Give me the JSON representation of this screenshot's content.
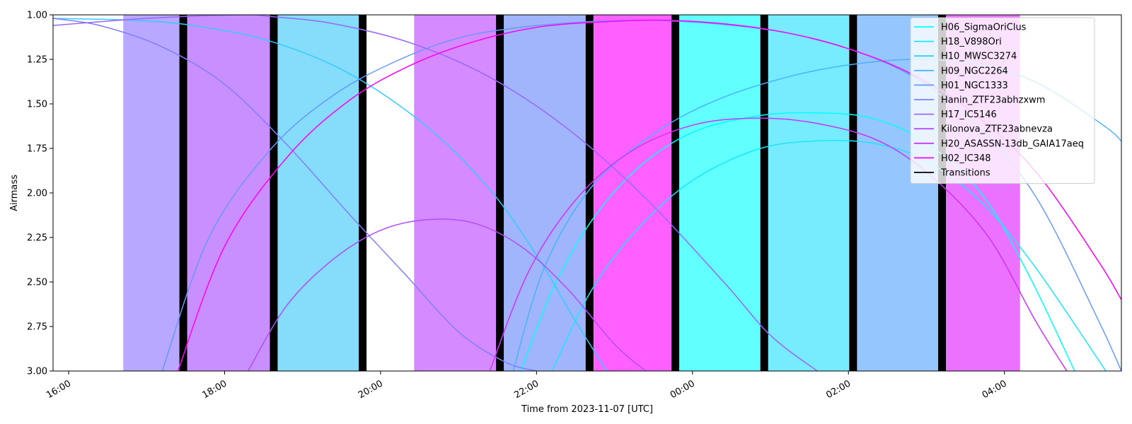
{
  "chart_data": {
    "type": "line",
    "title": "",
    "xlabel": "Time from 2023-11-07 [UTC]",
    "ylabel": "Airmass",
    "x_unit": "hours (UTC), 16.0 = 2023-11-07 16:00, 24+ = next day",
    "xlim": [
      15.8,
      29.5
    ],
    "ylim": [
      3.0,
      1.0
    ],
    "y_inverted": true,
    "grid": false,
    "legend_position": "top-right",
    "x_ticks": [
      {
        "value": 16,
        "label": "16:00"
      },
      {
        "value": 18,
        "label": "18:00"
      },
      {
        "value": 20,
        "label": "20:00"
      },
      {
        "value": 22,
        "label": "22:00"
      },
      {
        "value": 24,
        "label": "00:00"
      },
      {
        "value": 26,
        "label": "02:00"
      },
      {
        "value": 28,
        "label": "04:00"
      }
    ],
    "y_ticks": [
      {
        "value": 1.0,
        "label": "1.00"
      },
      {
        "value": 1.25,
        "label": "1.25"
      },
      {
        "value": 1.5,
        "label": "1.50"
      },
      {
        "value": 1.75,
        "label": "1.75"
      },
      {
        "value": 2.0,
        "label": "2.00"
      },
      {
        "value": 2.25,
        "label": "2.25"
      },
      {
        "value": 2.5,
        "label": "2.50"
      },
      {
        "value": 2.75,
        "label": "2.75"
      },
      {
        "value": 3.0,
        "label": "3.00"
      }
    ],
    "observation_blocks": [
      {
        "start": 16.7,
        "end": 17.42,
        "color": "#b9a8ff"
      },
      {
        "start": 17.52,
        "end": 18.58,
        "color": "#c98fff"
      },
      {
        "start": 18.68,
        "end": 19.72,
        "color": "#85dcfb"
      },
      {
        "start": 20.43,
        "end": 21.48,
        "color": "#d68aff"
      },
      {
        "start": 21.58,
        "end": 22.63,
        "color": "#a1b5fc"
      },
      {
        "start": 22.73,
        "end": 23.73,
        "color": "#ff60ff"
      },
      {
        "start": 23.83,
        "end": 24.87,
        "color": "#62ffff"
      },
      {
        "start": 24.97,
        "end": 26.01,
        "color": "#77ebff"
      },
      {
        "start": 26.11,
        "end": 27.15,
        "color": "#95c6fd"
      },
      {
        "start": 27.25,
        "end": 28.2,
        "color": "#ea72ff"
      }
    ],
    "transitions": [
      {
        "start": 17.42,
        "end": 17.52
      },
      {
        "start": 18.58,
        "end": 18.68
      },
      {
        "start": 19.72,
        "end": 19.82
      },
      {
        "start": 21.48,
        "end": 21.58
      },
      {
        "start": 22.63,
        "end": 22.73
      },
      {
        "start": 23.73,
        "end": 23.83
      },
      {
        "start": 24.87,
        "end": 24.97
      },
      {
        "start": 26.01,
        "end": 26.11
      },
      {
        "start": 27.15,
        "end": 27.25
      }
    ],
    "series": [
      {
        "name": "H06_SigmaOriClus",
        "color": "#00ffff",
        "x": [
          21.8,
          22.2,
          22.7,
          23.3,
          24.0,
          24.8,
          25.5,
          26.3,
          27.0,
          27.7,
          28.3,
          28.9
        ],
        "y": [
          3.0,
          2.55,
          2.16,
          1.86,
          1.66,
          1.57,
          1.55,
          1.58,
          1.72,
          2.0,
          2.45,
          3.0
        ]
      },
      {
        "name": "H18_V898Ori",
        "color": "#19e6ff",
        "x": [
          22.2,
          22.7,
          23.3,
          24.0,
          24.8,
          25.5,
          26.3,
          27.0,
          27.7,
          28.4,
          29.3
        ],
        "y": [
          3.0,
          2.55,
          2.2,
          1.93,
          1.76,
          1.71,
          1.72,
          1.82,
          2.05,
          2.42,
          3.0
        ]
      },
      {
        "name": "H10_MWSC3274",
        "color": "#32ccff",
        "x": [
          15.8,
          16.8,
          17.6,
          18.6,
          19.6,
          20.6,
          21.4,
          22.0,
          22.5,
          22.9
        ],
        "y": [
          1.02,
          1.03,
          1.06,
          1.15,
          1.33,
          1.63,
          1.98,
          2.35,
          2.72,
          3.0
        ]
      },
      {
        "name": "H09_NGC2264",
        "color": "#4cb2ff",
        "x": [
          21.7,
          22.1,
          22.7,
          23.5,
          24.3,
          25.3,
          26.2,
          27.0,
          27.8,
          28.5,
          29.3,
          29.5
        ],
        "y": [
          3.0,
          2.42,
          1.97,
          1.67,
          1.48,
          1.34,
          1.27,
          1.25,
          1.29,
          1.4,
          1.63,
          1.71
        ]
      },
      {
        "name": "H01_NGC1333",
        "color": "#6699ff",
        "x": [
          17.2,
          17.8,
          18.6,
          19.4,
          20.2,
          21.0,
          21.8,
          22.6,
          23.4,
          24.3,
          25.2,
          26.0,
          26.8,
          27.6,
          28.4,
          29.2,
          29.5
        ],
        "y": [
          3.0,
          2.25,
          1.75,
          1.45,
          1.26,
          1.13,
          1.07,
          1.04,
          1.03,
          1.05,
          1.1,
          1.19,
          1.34,
          1.6,
          2.02,
          2.71,
          3.0
        ]
      },
      {
        "name": "Hanin_ZTF23abhzxwm",
        "color": "#7f7fff",
        "x": [
          15.8,
          16.4,
          17.2,
          18.0,
          18.8,
          19.6,
          20.3,
          21.0,
          21.6,
          22.0
        ],
        "y": [
          1.02,
          1.06,
          1.18,
          1.39,
          1.73,
          2.12,
          2.45,
          2.78,
          2.95,
          3.0
        ]
      },
      {
        "name": "H17_IC5146",
        "color": "#9966ff",
        "x": [
          15.8,
          17.0,
          18.2,
          18.6,
          19.4,
          20.4,
          21.4,
          22.4,
          23.4,
          24.4,
          25.0,
          25.6
        ],
        "y": [
          1.06,
          1.02,
          1.0,
          1.01,
          1.05,
          1.16,
          1.35,
          1.64,
          2.03,
          2.5,
          2.8,
          3.0
        ]
      },
      {
        "name": "Kilonova_ZTF23abnevza",
        "color": "#b24cff",
        "x": [
          18.3,
          18.8,
          19.4,
          20.0,
          20.6,
          21.2,
          21.8,
          22.4,
          23.0,
          23.4
        ],
        "y": [
          3.0,
          2.63,
          2.37,
          2.21,
          2.15,
          2.17,
          2.3,
          2.54,
          2.85,
          3.0
        ]
      },
      {
        "name": "H20_ASASSN-13db_GAIA17aeq",
        "color": "#cc33ff",
        "x": [
          21.4,
          21.9,
          22.5,
          23.2,
          24.0,
          24.8,
          25.6,
          26.4,
          27.1,
          27.8,
          28.4,
          28.8
        ],
        "y": [
          3.0,
          2.44,
          2.04,
          1.77,
          1.62,
          1.58,
          1.61,
          1.71,
          1.92,
          2.25,
          2.72,
          3.0
        ]
      },
      {
        "name": "H02_IC348",
        "color": "#ff00ff",
        "x": [
          17.4,
          18.0,
          18.8,
          19.6,
          20.4,
          21.2,
          22.0,
          22.8,
          23.6,
          24.4,
          25.2,
          26.0,
          26.8,
          27.6,
          28.4,
          29.2,
          29.5
        ],
        "y": [
          3.0,
          2.3,
          1.8,
          1.48,
          1.28,
          1.15,
          1.07,
          1.04,
          1.03,
          1.05,
          1.1,
          1.19,
          1.33,
          1.55,
          1.88,
          2.38,
          2.6
        ]
      }
    ],
    "legend_entries": [
      {
        "name": "H06_SigmaOriClus",
        "color": "#00ffff"
      },
      {
        "name": "H18_V898Ori",
        "color": "#19e6ff"
      },
      {
        "name": "H10_MWSC3274",
        "color": "#32ccff"
      },
      {
        "name": "H09_NGC2264",
        "color": "#4cb2ff"
      },
      {
        "name": "H01_NGC1333",
        "color": "#6699ff"
      },
      {
        "name": "Hanin_ZTF23abhzxwm",
        "color": "#7f7fff"
      },
      {
        "name": "H17_IC5146",
        "color": "#9966ff"
      },
      {
        "name": "Kilonova_ZTF23abnevza",
        "color": "#b24cff"
      },
      {
        "name": "H20_ASASSN-13db_GAIA17aeq",
        "color": "#cc33ff"
      },
      {
        "name": "H02_IC348",
        "color": "#ff00ff"
      },
      {
        "name": "Transitions",
        "color": "#000000"
      }
    ]
  }
}
